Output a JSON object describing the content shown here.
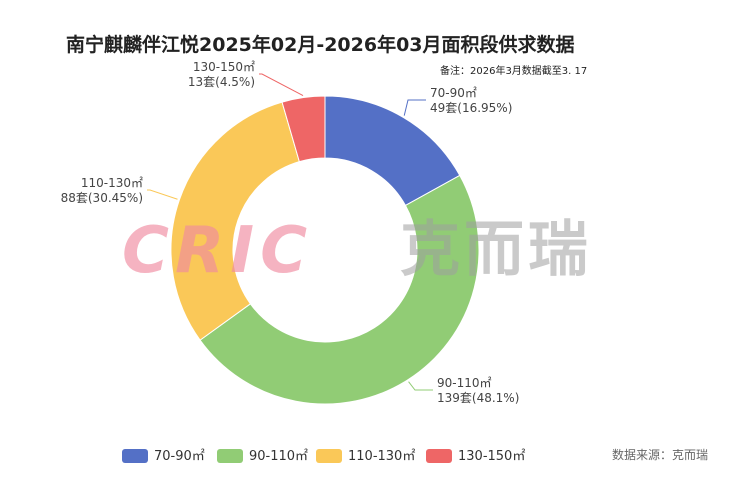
{
  "chart_data": {
    "type": "pie",
    "title": "南宁麒麟伴江悦2025年02月-2026年03月面积段供求数据",
    "note": "备注：2026年3月数据截至3. 17",
    "source": "数据来源：克而瑞",
    "watermark": {
      "logo_text": "CRIC",
      "brand_text": "克而瑞"
    },
    "slices": [
      {
        "label": "70-90㎡",
        "count_label": "49套(16.95%)",
        "value": 49,
        "color": "#5470c6"
      },
      {
        "label": "90-110㎡",
        "count_label": "139套(48.1%)",
        "value": 139,
        "color": "#91cc75"
      },
      {
        "label": "110-130㎡",
        "count_label": "88套(30.45%)",
        "value": 88,
        "color": "#fac858"
      },
      {
        "label": "130-150㎡",
        "count_label": "13套(4.5%)",
        "value": 13,
        "color": "#ee6666"
      }
    ],
    "legend": [
      "70-90㎡",
      "90-110㎡",
      "110-130㎡",
      "130-150㎡"
    ]
  }
}
